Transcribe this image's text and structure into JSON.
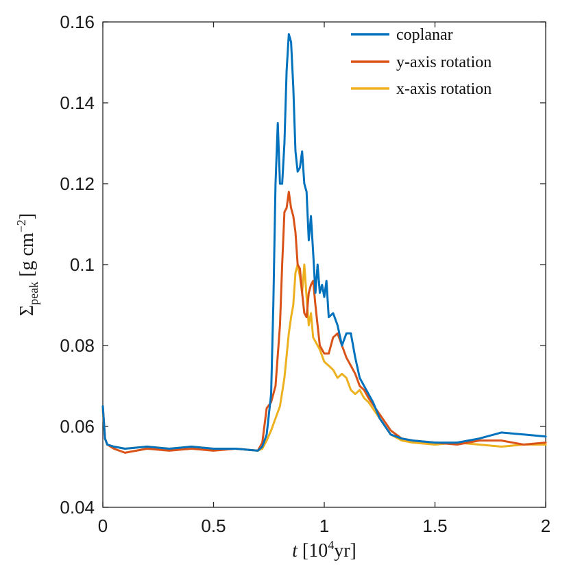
{
  "chart_data": {
    "type": "line",
    "title": "",
    "xlabel": {
      "italic": "t",
      "open": " [10",
      "sup": "4",
      "close": "yr]"
    },
    "ylabel": {
      "sigma": "Σ",
      "sub": "peak",
      "unit": " [g cm",
      "sup": "−2",
      "close": "]"
    },
    "xlim": [
      0,
      2
    ],
    "ylim": [
      0.04,
      0.16
    ],
    "xticks": [
      0,
      0.5,
      1,
      1.5,
      2
    ],
    "xtick_labels": [
      "0",
      "0.5",
      "1",
      "1.5",
      "2"
    ],
    "yticks": [
      0.04,
      0.06,
      0.08,
      0.1,
      0.12,
      0.14,
      0.16
    ],
    "ytick_labels": [
      "0.04",
      "0.06",
      "0.08",
      "0.1",
      "0.12",
      "0.14",
      "0.16"
    ],
    "grid": false,
    "legend": "top-right",
    "series": [
      {
        "name": "coplanar",
        "color": "#0072BD",
        "x": [
          0,
          0.01,
          0.02,
          0.05,
          0.1,
          0.2,
          0.3,
          0.4,
          0.5,
          0.6,
          0.7,
          0.72,
          0.74,
          0.76,
          0.77,
          0.78,
          0.79,
          0.8,
          0.81,
          0.82,
          0.83,
          0.84,
          0.85,
          0.86,
          0.87,
          0.88,
          0.89,
          0.9,
          0.91,
          0.92,
          0.93,
          0.94,
          0.95,
          0.96,
          0.97,
          0.98,
          0.99,
          1.0,
          1.01,
          1.02,
          1.04,
          1.06,
          1.08,
          1.1,
          1.12,
          1.14,
          1.16,
          1.18,
          1.2,
          1.22,
          1.25,
          1.3,
          1.35,
          1.4,
          1.5,
          1.6,
          1.7,
          1.8,
          1.9,
          2.0
        ],
        "y": [
          0.065,
          0.057,
          0.0555,
          0.055,
          0.0545,
          0.055,
          0.0545,
          0.055,
          0.0545,
          0.0545,
          0.054,
          0.055,
          0.058,
          0.068,
          0.09,
          0.12,
          0.135,
          0.12,
          0.12,
          0.13,
          0.148,
          0.157,
          0.155,
          0.144,
          0.128,
          0.123,
          0.124,
          0.128,
          0.12,
          0.118,
          0.106,
          0.112,
          0.103,
          0.093,
          0.1,
          0.093,
          0.095,
          0.092,
          0.096,
          0.087,
          0.088,
          0.085,
          0.08,
          0.083,
          0.083,
          0.077,
          0.072,
          0.07,
          0.068,
          0.066,
          0.062,
          0.058,
          0.057,
          0.0565,
          0.056,
          0.056,
          0.057,
          0.0585,
          0.058,
          0.0575
        ]
      },
      {
        "name": "y-axis rotation",
        "color": "#D95319",
        "x": [
          0,
          0.01,
          0.02,
          0.05,
          0.1,
          0.2,
          0.3,
          0.4,
          0.5,
          0.6,
          0.7,
          0.72,
          0.74,
          0.76,
          0.78,
          0.8,
          0.81,
          0.82,
          0.83,
          0.84,
          0.85,
          0.86,
          0.87,
          0.88,
          0.89,
          0.9,
          0.91,
          0.92,
          0.93,
          0.94,
          0.95,
          0.96,
          0.97,
          0.98,
          1.0,
          1.02,
          1.04,
          1.06,
          1.08,
          1.1,
          1.12,
          1.14,
          1.16,
          1.18,
          1.2,
          1.25,
          1.3,
          1.35,
          1.4,
          1.5,
          1.6,
          1.7,
          1.8,
          1.9,
          2.0
        ],
        "y": [
          0.065,
          0.057,
          0.0555,
          0.0545,
          0.0535,
          0.0545,
          0.054,
          0.0545,
          0.054,
          0.0545,
          0.054,
          0.056,
          0.0645,
          0.066,
          0.07,
          0.085,
          0.1,
          0.113,
          0.114,
          0.118,
          0.114,
          0.112,
          0.108,
          0.1,
          0.099,
          0.093,
          0.088,
          0.087,
          0.093,
          0.095,
          0.096,
          0.09,
          0.085,
          0.08,
          0.078,
          0.078,
          0.082,
          0.083,
          0.08,
          0.077,
          0.075,
          0.073,
          0.07,
          0.069,
          0.067,
          0.063,
          0.059,
          0.057,
          0.0565,
          0.056,
          0.0555,
          0.0565,
          0.0565,
          0.0555,
          0.056
        ]
      },
      {
        "name": "x-axis rotation",
        "color": "#EDB120",
        "x": [
          0,
          0.01,
          0.02,
          0.05,
          0.1,
          0.2,
          0.3,
          0.4,
          0.5,
          0.6,
          0.7,
          0.72,
          0.74,
          0.76,
          0.78,
          0.8,
          0.82,
          0.84,
          0.85,
          0.86,
          0.87,
          0.88,
          0.89,
          0.9,
          0.91,
          0.92,
          0.93,
          0.94,
          0.95,
          0.96,
          0.97,
          0.98,
          1.0,
          1.02,
          1.04,
          1.06,
          1.08,
          1.1,
          1.12,
          1.14,
          1.16,
          1.18,
          1.2,
          1.25,
          1.3,
          1.35,
          1.4,
          1.5,
          1.6,
          1.7,
          1.8,
          1.9,
          2.0
        ],
        "y": [
          0.064,
          0.057,
          0.0555,
          0.055,
          0.0545,
          0.055,
          0.0545,
          0.055,
          0.0545,
          0.0545,
          0.054,
          0.0545,
          0.0565,
          0.059,
          0.062,
          0.065,
          0.072,
          0.083,
          0.087,
          0.09,
          0.098,
          0.1,
          0.097,
          0.093,
          0.1,
          0.092,
          0.085,
          0.088,
          0.082,
          0.081,
          0.08,
          0.079,
          0.076,
          0.075,
          0.074,
          0.072,
          0.073,
          0.072,
          0.069,
          0.068,
          0.069,
          0.067,
          0.066,
          0.062,
          0.058,
          0.0565,
          0.056,
          0.0555,
          0.056,
          0.0555,
          0.055,
          0.0555,
          0.0555
        ]
      }
    ]
  }
}
